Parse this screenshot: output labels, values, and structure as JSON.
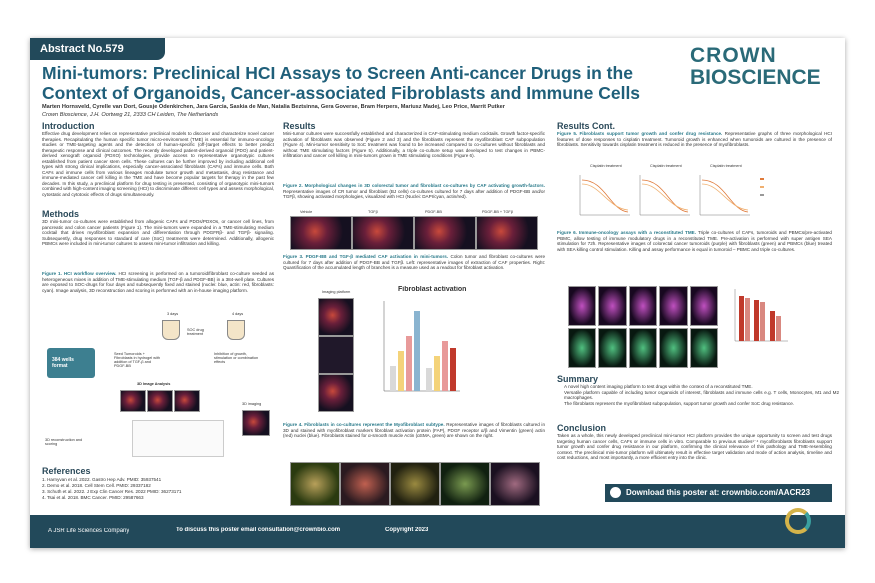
{
  "header": {
    "abstract": "Abstract No.579",
    "title": "Mini-tumors: Preclinical HCI Assays to Screen Anti-cancer Drugs in the Context of Organoids, Cancer-associated Fibroblasts and Immune Cells",
    "authors": "Marten Hornsveld, Cyrelle van Dort, Gousje Odenkirchen, Jara Garcia, Saskia de Man, Natalia Beztsinna, Gera Goverse, Bram Herpers, Mariusz Madej, Leo Price, Marrit Putker",
    "affiliation": "Crown Bioscience, J.H. Oortweg 21, 2333 CH Leiden, The Netherlands",
    "logo_line1": "CROWN",
    "logo_line2": "BIOSCIENCE"
  },
  "introduction": {
    "heading": "Introduction",
    "text": "Effective drug development relies on representative preclinical models to discover and characterize novel cancer therapies. Recapitulating the human specific tumor micro-environment (TME) is essential for immuno-oncology studies or TME-targeting agents and the detection of human-specific (off-)target effects to better predict therapeutic response and clinical outcomes. The recently developed patient-derived organoid (PDO) and patient-derived xenograft organoid (PDXO) technologies, provide access to representative organotypic cultures established from patient cancer stem cells. These cultures can be further improved by including additional cell types with strong clinical implications, especially cancer-associated fibroblasts (CAFs) and immune cells. Both CAFs and immune cells from various lineages modulate tumor growth and metastasis, drug resistance and immune-mediated cancer cell killing in the TME and have become popular targets for therapy in the past few decades. In this study, a preclinical platform for drug testing is presented, consisting of organotypic mini-tumors combined with high-content imaging screening (HCI) to discriminate different cell types and assess morphological, cytostatic and cytotoxic effects of drugs simultaneously."
  },
  "methods": {
    "heading": "Methods",
    "text": "3D mini-tumor co-cultures were established from allogenic CAFs and PDOs/PDXOs, or cancer cell lines, from pancreatic and colon cancer patients (Figure 1). The mini-tumors were expanded in a TME-stimulating medium cocktail that drives myofibroblast expansion and differentiation through PDGFRβ- and TGFβ- signaling. Subsequently, drug responses to standard of care (SoC) treatments were determined. Additionally, allogenic PBMCs were included in mini-tumor cultures to assess mini-tumor infiltration and killing.",
    "figure1_title": "Figure 1. HCI workflow overview.",
    "figure1_caption": "HCI screening is performed on a tumoroid/fibroblast co-culture seeded as heterogeneous mixes in addition of TME-stimulating medium (TGF-β and PDGF-BB) in a 384-well plate. Cultures are exposed to SOC-drugs for four days and subsequently fixed and stained (nuclei: blue, actin: red, fibroblasts: cyan). Image analysis, 3D reconstruction and scoring is performed with an in-house imaging platform.",
    "label_wells": "384 wells format",
    "label_3days": "3 days",
    "label_4days": "4 days",
    "label_soc": "SOC drug treatment",
    "label_seed": "Seed Tumoroids + Fibroblasts in hydrogel with addition of TGF-β and PDGF-BB",
    "label_inhibition": "Inhibition of growth, stimulation or combination effects",
    "label_analysis": "3D Image Analysis",
    "label_imaging": "3D imaging",
    "label_recon": "3D reconstruction and scoring"
  },
  "references": {
    "heading": "References",
    "items": [
      "1. Harnyvan et al. 2022. Gastro Hep Adv. PMID: 35937541",
      "2. Demo et al. 2018. Cell Stem Cell. PMID: 29337182",
      "3. Schuth et al. 2022. J Exp Clin Cancer Res. 2022 PMID: 36273171",
      "4. Tsai et al. 2018. BMC Cancer. PMID: 29587663"
    ]
  },
  "results": {
    "heading": "Results",
    "text": "Mini-tumor cultures were successfully established and characterized in CAF-stimulating medium cocktails. Growth factor-specific activation of fibroblasts was observed (Figure 2 and 3) and the fibroblasts represent the myofibroblast CAF subpopulation (Figure 4). Mini-tumor sensitivity to SoC treatment was found to be increased compared to co-cultures without fibroblasts and without TME stimulating factors (Figure 5). Additionally, a triple co-culture setup was developed to test changes in PBMC-infiltration and cancer cell killing in mini-tumors grown in TME stimulating conditions (Figure 6).",
    "figure2_title": "Figure 2. Morphological changes in 3D colorectal tumor and fibroblast co-cultures by CAF activating growth-factors.",
    "figure2_caption": "Representative images of CR tumor and fibroblast (BJ cells) co-cultures cultured for 7 days after addition of PDGF-BB and/or TGFβ, showing activated morphologies, visualized with HCI (Nuclei: DAPI/cyan, actin/red).",
    "figure2_labels": [
      "Vehicle",
      "TGFβ",
      "PDGF-BB",
      "PDGF-BB + TGFβ"
    ],
    "figure3_title": "Figure 3. PDGF-BB and TGF-β mediated CAF activation in mini-tumors.",
    "figure3_caption": "Colon tumor and fibroblast co-cultures were cultured for 7 days after addition of PDGF-BB and TGFβ. Left: representative images of extraction of CAF properties. Right: Quantification of the accumulated length of branches is a measure used as a readout for fibroblast activation.",
    "figure3_imaging": "Imaging platform",
    "figure3_chart": "Fibroblast activation",
    "figure4_title": "Figure 4. Fibroblasts in co-cultures represent the Myofibroblast subtype.",
    "figure4_caption": "Representative images of fibroblasts cultured in 3D and stained with myofibroblast markers fibroblast activation protein (FAP), PDGF receptor α/β and Vimentin (green) actin (red) nuclei (blue). Fibroblasts stained for α-smooth muscle Actin (αSMA, green) are shown on the right."
  },
  "results_cont": {
    "heading": "Results Cont.",
    "figure5_title": "Figure 5. Fibroblasts support tumor growth and confer drug resistance.",
    "figure5_caption": "Representative graphs of three morphological HCI features of dose responses to cisplatin treatment. Tumoroid growth is enhanced when tumoroids are cultured in the presence of fibroblasts. Sensitivity towards cisplatin treatment is reduced in the presence of myofibroblasts.",
    "figure5_chart_title": "Cisplatin treatment",
    "figure6_title": "Figure 6. Immune-oncology assays with a reconstituted TME.",
    "figure6_caption": "Triple co-cultures of CAFs, tumoroids and PBMCs/pre-activated PBMC, allow testing of immune modulatory drugs in a reconstituted TME. Pre-activation is performed with super antigen SEA stimulation for 72h. Representative images of colorectal cancer tumoroids (purple) with fibroblasts (green) and PBMCs (blue) treated with SEA killing control stimulation. Killing and assay performance is equal in tumoroid – PBMC and triple co-cultures."
  },
  "summary": {
    "heading": "Summary",
    "bullets": [
      "A novel high content imaging platform to test drugs within the context of a reconstituted TME.",
      "Versatile platform capable of including tumor organoids of interest, fibroblasts and immune cells e.g. T cells, Monocytes, M1 and M2 macrophages.",
      "The fibroblasts represent the myofibroblast subpopulation, support tumor growth and confer SoC drug resistance."
    ]
  },
  "conclusion": {
    "heading": "Conclusion",
    "text": "Taken as a whole, this newly developed preclinical mini-tumor HCI platform provides the unique opportunity to screen and test drugs targeting human cancer cells, CAFs or immune cells in vitro. Comparable to previous studies¹⁻⁴ mycofibroblasts fibroblasts support tumor growth and confer drug resistance in our platform, confirming the clinical relevance of this pathology and TME-resembling context. The preclinical mini-tumor platform will ultimately result in effective target validation and mode of action analysis, timeline and cost reductions, and most importantly, a more efficient entry into the clinic."
  },
  "download": "Download this poster at: crownbio.com/AACR23",
  "footer": {
    "brand": "A JSR Life Sciences Company",
    "contact": "To discuss this poster email consultation@crownbio.com",
    "copyright": "Copyright 2023"
  }
}
